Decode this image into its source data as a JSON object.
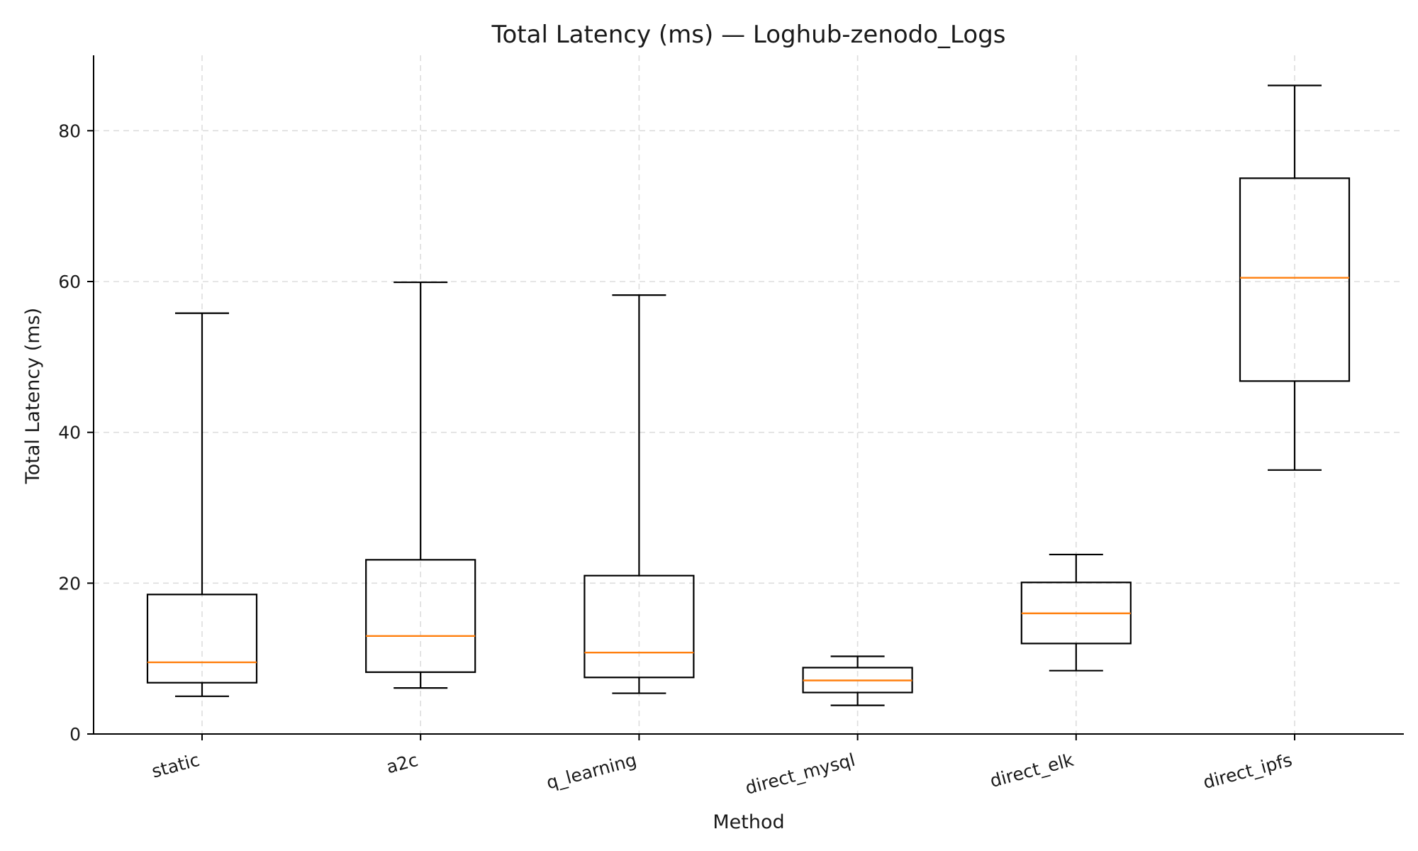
{
  "chart_data": {
    "type": "box",
    "title": "Total Latency (ms) — Loghub-zenodo_Logs",
    "xlabel": "Method",
    "ylabel": "Total Latency (ms)",
    "ylim": [
      0,
      90
    ],
    "yticks": [
      0,
      20,
      40,
      60,
      80
    ],
    "grid": true,
    "categories": [
      "static",
      "a2c",
      "q_learning",
      "direct_mysql",
      "direct_elk",
      "direct_ipfs"
    ],
    "boxes": [
      {
        "label": "static",
        "whisker_low": 5.0,
        "q1": 6.8,
        "median": 9.5,
        "q3": 18.5,
        "whisker_high": 55.8
      },
      {
        "label": "a2c",
        "whisker_low": 6.1,
        "q1": 8.2,
        "median": 13.0,
        "q3": 23.1,
        "whisker_high": 59.9
      },
      {
        "label": "q_learning",
        "whisker_low": 5.4,
        "q1": 7.5,
        "median": 10.8,
        "q3": 21.0,
        "whisker_high": 58.2
      },
      {
        "label": "direct_mysql",
        "whisker_low": 3.8,
        "q1": 5.5,
        "median": 7.1,
        "q3": 8.8,
        "whisker_high": 10.3
      },
      {
        "label": "direct_elk",
        "whisker_low": 8.4,
        "q1": 12.0,
        "median": 16.0,
        "q3": 20.1,
        "whisker_high": 23.8
      },
      {
        "label": "direct_ipfs",
        "whisker_low": 35.0,
        "q1": 46.8,
        "median": 60.5,
        "q3": 73.7,
        "whisker_high": 86.0
      }
    ],
    "colors": {
      "box": "#000000",
      "median": "#ff7f0e",
      "grid": "#dddddd"
    }
  }
}
